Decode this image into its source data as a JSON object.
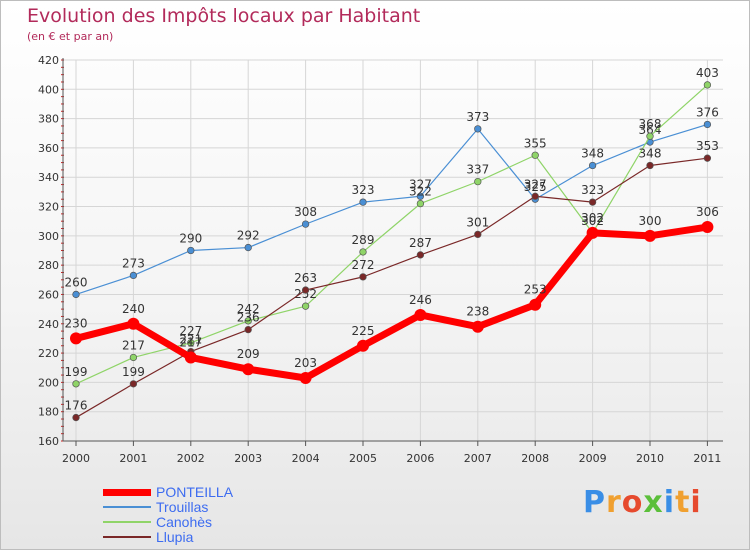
{
  "title": "Evolution des Impôts locaux par Habitant",
  "subtitle": "(en € et par an)",
  "brand": {
    "text": "Proxiti",
    "colors": [
      "#3a8ee6",
      "#f0a030",
      "#e64a2e",
      "#5bbf3a",
      "#3a8ee6",
      "#f0a030",
      "#e64a2e"
    ]
  },
  "chart_data": {
    "type": "line",
    "x": [
      "2000",
      "2001",
      "2002",
      "2003",
      "2004",
      "2005",
      "2006",
      "2007",
      "2008",
      "2009",
      "2010",
      "2011"
    ],
    "ylim": [
      160,
      420
    ],
    "yticks": [
      "160",
      "180",
      "200",
      "220",
      "240",
      "260",
      "280",
      "300",
      "320",
      "340",
      "360",
      "380",
      "400",
      "420"
    ],
    "grid": true,
    "legend_position": "bottom-left",
    "series": [
      {
        "name": "Trouillas",
        "color": "#4a8fd4",
        "width": 1.2,
        "values": [
          260,
          273,
          290,
          292,
          308,
          323,
          327,
          373,
          325,
          348,
          364,
          376
        ],
        "labels": [
          "260",
          "273",
          "290",
          "292",
          "308",
          "323",
          "327",
          "373",
          "325",
          "348",
          "364",
          "376"
        ]
      },
      {
        "name": "Canohès",
        "color": "#8fd468",
        "width": 1.2,
        "values": [
          199,
          217,
          227,
          242,
          252,
          289,
          322,
          337,
          355,
          302,
          368,
          403
        ],
        "labels": [
          "199",
          "217",
          "227",
          "242",
          "252",
          "289",
          "322",
          "337",
          "355",
          "302",
          "368",
          "403"
        ]
      },
      {
        "name": "Llupia",
        "color": "#7a2828",
        "width": 1.2,
        "values": [
          176,
          199,
          221,
          236,
          263,
          272,
          287,
          301,
          327,
          323,
          348,
          353
        ],
        "labels": [
          "176",
          "199",
          "221",
          "236",
          "263",
          "272",
          "287",
          "301",
          "327",
          "323",
          "348",
          "353"
        ]
      },
      {
        "name": "PONTEILLA",
        "color": "#ff0000",
        "width": 7,
        "values": [
          230,
          240,
          217,
          209,
          203,
          225,
          246,
          238,
          253,
          302,
          300,
          306
        ],
        "labels": [
          "230",
          "240",
          "217",
          "209",
          "203",
          "225",
          "246",
          "238",
          "253",
          "302",
          "300",
          "306"
        ]
      }
    ],
    "legend": [
      "PONTEILLA",
      "Trouillas",
      "Canohès",
      "Llupia"
    ]
  }
}
